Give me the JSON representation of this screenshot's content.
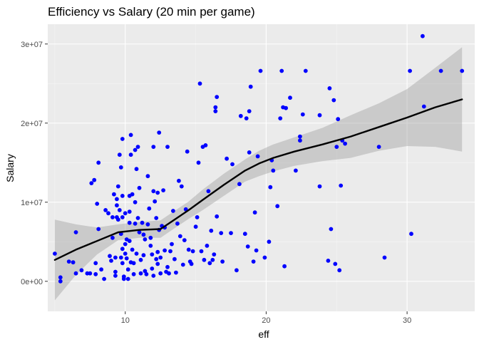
{
  "chart_data": {
    "type": "scatter",
    "title": "Efficiency vs Salary (20 min per game)",
    "xlabel": "eff",
    "ylabel": "Salary",
    "xlim": [
      4.5,
      34.8
    ],
    "ylim": [
      -3800000,
      32500000
    ],
    "x_ticks": [
      10,
      20,
      30
    ],
    "x_tick_labels": [
      "10",
      "20",
      "30"
    ],
    "y_ticks": [
      0,
      10000000,
      20000000,
      30000000
    ],
    "y_tick_labels": [
      "0e+00",
      "1e+07",
      "2e+07",
      "3e+07"
    ],
    "grid": true,
    "legend": "none",
    "colors": {
      "panel": "#ebebeb",
      "grid_major": "#ffffff",
      "grid_minor": "#f5f5f5",
      "point": "#0000ff",
      "smooth_line": "#000000",
      "ribbon": "#999999"
    },
    "points": [
      [
        5.0,
        3500000
      ],
      [
        5.4,
        500000
      ],
      [
        5.4,
        0
      ],
      [
        6.0,
        2500000
      ],
      [
        6.3,
        2400000
      ],
      [
        6.5,
        6200000
      ],
      [
        6.5,
        1000000
      ],
      [
        6.9,
        1400000
      ],
      [
        7.3,
        1000000
      ],
      [
        7.5,
        1000000
      ],
      [
        7.6,
        12400000
      ],
      [
        7.8,
        12800000
      ],
      [
        7.9,
        900000
      ],
      [
        7.9,
        2300000
      ],
      [
        8.0,
        9800000
      ],
      [
        8.1,
        15000000
      ],
      [
        8.1,
        6600000
      ],
      [
        8.3,
        1500000
      ],
      [
        8.5,
        300000
      ],
      [
        8.6,
        9000000
      ],
      [
        8.8,
        8600000
      ],
      [
        8.9,
        3200000
      ],
      [
        9.0,
        2600000
      ],
      [
        9.1,
        8100000
      ],
      [
        9.1,
        5500000
      ],
      [
        9.2,
        11000000
      ],
      [
        9.3,
        3000000
      ],
      [
        9.3,
        1200000
      ],
      [
        9.3,
        700000
      ],
      [
        9.4,
        8100000
      ],
      [
        9.4,
        10400000
      ],
      [
        9.4,
        9600000
      ],
      [
        9.5,
        12000000
      ],
      [
        9.5,
        7800000
      ],
      [
        9.6,
        16000000
      ],
      [
        9.6,
        9000000
      ],
      [
        9.7,
        14400000
      ],
      [
        9.7,
        6000000
      ],
      [
        9.7,
        3000000
      ],
      [
        9.8,
        18000000
      ],
      [
        9.8,
        10800000
      ],
      [
        9.8,
        8100000
      ],
      [
        9.8,
        4100000
      ],
      [
        9.8,
        2300000
      ],
      [
        9.9,
        600000
      ],
      [
        9.9,
        300000
      ],
      [
        10.0,
        8600000
      ],
      [
        10.0,
        4700000
      ],
      [
        10.0,
        3500000
      ],
      [
        10.1,
        5300000
      ],
      [
        10.1,
        2900000
      ],
      [
        10.2,
        1500000
      ],
      [
        10.2,
        300000
      ],
      [
        10.3,
        10800000
      ],
      [
        10.3,
        8800000
      ],
      [
        10.3,
        7400000
      ],
      [
        10.3,
        5100000
      ],
      [
        10.4,
        16000000
      ],
      [
        10.4,
        18500000
      ],
      [
        10.4,
        2400000
      ],
      [
        10.5,
        11000000
      ],
      [
        10.5,
        4000000
      ],
      [
        10.6,
        900000
      ],
      [
        10.6,
        2300000
      ],
      [
        10.7,
        16600000
      ],
      [
        10.7,
        10000000
      ],
      [
        10.7,
        7300000
      ],
      [
        10.8,
        14200000
      ],
      [
        10.8,
        3500000
      ],
      [
        10.9,
        17000000
      ],
      [
        10.9,
        8000000
      ],
      [
        11.0,
        11800000
      ],
      [
        11.0,
        6200000
      ],
      [
        11.1,
        2700000
      ],
      [
        11.1,
        1000000
      ],
      [
        11.2,
        7400000
      ],
      [
        11.3,
        5900000
      ],
      [
        11.3,
        3300000
      ],
      [
        11.4,
        5300000
      ],
      [
        11.4,
        1300000
      ],
      [
        11.5,
        900000
      ],
      [
        11.6,
        13300000
      ],
      [
        11.6,
        7200000
      ],
      [
        11.7,
        9200000
      ],
      [
        11.8,
        5500000
      ],
      [
        11.8,
        4500000
      ],
      [
        11.9,
        3400000
      ],
      [
        11.9,
        1600000
      ],
      [
        12.0,
        17000000
      ],
      [
        12.0,
        11400000
      ],
      [
        12.0,
        700000
      ],
      [
        12.1,
        10100000
      ],
      [
        12.2,
        8000000
      ],
      [
        12.2,
        2800000
      ],
      [
        12.3,
        11200000
      ],
      [
        12.3,
        3700000
      ],
      [
        12.3,
        2200000
      ],
      [
        12.4,
        18800000
      ],
      [
        12.4,
        6500000
      ],
      [
        12.5,
        1000000
      ],
      [
        12.5,
        3000000
      ],
      [
        12.6,
        7000000
      ],
      [
        12.7,
        11500000
      ],
      [
        12.8,
        6800000
      ],
      [
        12.8,
        3900000
      ],
      [
        12.9,
        1200000
      ],
      [
        13.0,
        1800000
      ],
      [
        13.0,
        17000000
      ],
      [
        13.1,
        1000000
      ],
      [
        13.2,
        3800000
      ],
      [
        13.3,
        4700000
      ],
      [
        13.4,
        8900000
      ],
      [
        13.5,
        2800000
      ],
      [
        13.6,
        1100000
      ],
      [
        13.7,
        7300000
      ],
      [
        13.8,
        12700000
      ],
      [
        13.9,
        5700000
      ],
      [
        14.0,
        12000000
      ],
      [
        14.1,
        2100000
      ],
      [
        14.2,
        5200000
      ],
      [
        14.3,
        9100000
      ],
      [
        14.4,
        16400000
      ],
      [
        14.5,
        4000000
      ],
      [
        14.6,
        2500000
      ],
      [
        14.7,
        2200000
      ],
      [
        14.8,
        3800000
      ],
      [
        15.0,
        6900000
      ],
      [
        15.1,
        8100000
      ],
      [
        15.2,
        15000000
      ],
      [
        15.3,
        25000000
      ],
      [
        15.4,
        3800000
      ],
      [
        15.5,
        17000000
      ],
      [
        15.6,
        2700000
      ],
      [
        15.7,
        17200000
      ],
      [
        15.8,
        4500000
      ],
      [
        15.9,
        11400000
      ],
      [
        16.0,
        2300000
      ],
      [
        16.1,
        6400000
      ],
      [
        16.2,
        2700000
      ],
      [
        16.3,
        3400000
      ],
      [
        16.4,
        22000000
      ],
      [
        16.4,
        21500000
      ],
      [
        16.5,
        8200000
      ],
      [
        16.5,
        23300000
      ],
      [
        16.8,
        6100000
      ],
      [
        16.9,
        2500000
      ],
      [
        17.2,
        15500000
      ],
      [
        17.5,
        6100000
      ],
      [
        17.6,
        14800000
      ],
      [
        17.9,
        1400000
      ],
      [
        18.1,
        12300000
      ],
      [
        18.2,
        20900000
      ],
      [
        18.5,
        6000000
      ],
      [
        18.6,
        20600000
      ],
      [
        18.7,
        4400000
      ],
      [
        18.8,
        21500000
      ],
      [
        18.8,
        16300000
      ],
      [
        18.9,
        24600000
      ],
      [
        19.1,
        2500000
      ],
      [
        19.2,
        8700000
      ],
      [
        19.3,
        3900000
      ],
      [
        19.4,
        15800000
      ],
      [
        19.6,
        26600000
      ],
      [
        19.9,
        3000000
      ],
      [
        20.2,
        5000000
      ],
      [
        20.3,
        11900000
      ],
      [
        20.4,
        15300000
      ],
      [
        20.5,
        14000000
      ],
      [
        20.8,
        9500000
      ],
      [
        21.0,
        20600000
      ],
      [
        21.1,
        26600000
      ],
      [
        21.2,
        22000000
      ],
      [
        21.3,
        1900000
      ],
      [
        21.4,
        21900000
      ],
      [
        21.7,
        23200000
      ],
      [
        22.1,
        14000000
      ],
      [
        22.4,
        18300000
      ],
      [
        22.4,
        17800000
      ],
      [
        22.6,
        21100000
      ],
      [
        22.8,
        26600000
      ],
      [
        23.8,
        12000000
      ],
      [
        23.8,
        21000000
      ],
      [
        24.4,
        2600000
      ],
      [
        24.5,
        24400000
      ],
      [
        24.6,
        6600000
      ],
      [
        24.8,
        22900000
      ],
      [
        24.9,
        2200000
      ],
      [
        25.0,
        17000000
      ],
      [
        25.1,
        20500000
      ],
      [
        25.2,
        1400000
      ],
      [
        25.3,
        12100000
      ],
      [
        25.4,
        17800000
      ],
      [
        25.6,
        17400000
      ],
      [
        28.0,
        17000000
      ],
      [
        28.4,
        3000000
      ],
      [
        30.2,
        26600000
      ],
      [
        30.3,
        6000000
      ],
      [
        31.1,
        31000000
      ],
      [
        31.2,
        22100000
      ],
      [
        32.4,
        26600000
      ],
      [
        33.9,
        26600000
      ]
    ],
    "smooth_fit": {
      "x": [
        5.0,
        6.5,
        8.0,
        9.5,
        11.0,
        12.5,
        13.5,
        14.5,
        15.5,
        17.0,
        18.5,
        19.5,
        20.5,
        22.0,
        24.0,
        26.0,
        28.0,
        30.0,
        32.0,
        33.9
      ],
      "y": [
        2700000,
        4000000,
        5100000,
        6200000,
        6500000,
        6600000,
        7800000,
        9000000,
        10300000,
        12200000,
        14000000,
        14900000,
        15600000,
        16400000,
        17300000,
        18300000,
        19500000,
        20700000,
        22000000,
        23000000
      ],
      "upper": [
        7800000,
        7200000,
        6800000,
        7200000,
        7500000,
        7700000,
        8900000,
        10100000,
        11600000,
        13600000,
        15400000,
        16500000,
        17300000,
        18200000,
        19400000,
        21000000,
        22500000,
        24300000,
        27000000,
        29600000
      ],
      "lower": [
        -2400000,
        800000,
        3400000,
        5200000,
        5500000,
        5500000,
        6700000,
        7900000,
        9000000,
        10800000,
        12600000,
        13300000,
        13900000,
        14600000,
        15200000,
        15600000,
        16500000,
        17100000,
        17000000,
        16400000
      ]
    }
  }
}
